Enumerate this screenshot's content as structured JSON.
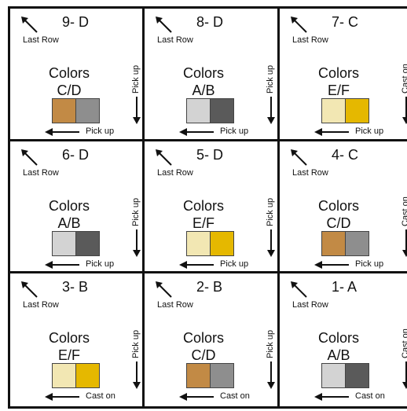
{
  "cells": [
    {
      "title": "9- D",
      "last_row": "Last Row",
      "colors_label": "Colors",
      "pair": "C/D",
      "swatches": [
        "#c28a45",
        "#8e8e8e"
      ],
      "side_label": "Pick up",
      "bottom_label": "Pick up"
    },
    {
      "title": "8- D",
      "last_row": "Last Row",
      "colors_label": "Colors",
      "pair": "A/B",
      "swatches": [
        "#d3d3d3",
        "#5a5a5a"
      ],
      "side_label": "Pick up",
      "bottom_label": "Pick up"
    },
    {
      "title": "7- C",
      "last_row": "Last Row",
      "colors_label": "Colors",
      "pair": "E/F",
      "swatches": [
        "#f2e7b3",
        "#e5b800"
      ],
      "side_label": "Cast on",
      "bottom_label": "Pick up"
    },
    {
      "title": "6- D",
      "last_row": "Last Row",
      "colors_label": "Colors",
      "pair": "A/B",
      "swatches": [
        "#d3d3d3",
        "#5a5a5a"
      ],
      "side_label": "Pick up",
      "bottom_label": "Pick up"
    },
    {
      "title": "5- D",
      "last_row": "Last Row",
      "colors_label": "Colors",
      "pair": "E/F",
      "swatches": [
        "#f2e7b3",
        "#e5b800"
      ],
      "side_label": "Pick up",
      "bottom_label": "Pick up"
    },
    {
      "title": "4- C",
      "last_row": "Last Row",
      "colors_label": "Colors",
      "pair": "C/D",
      "swatches": [
        "#c28a45",
        "#8e8e8e"
      ],
      "side_label": "Cast on",
      "bottom_label": "Pick up"
    },
    {
      "title": "3- B",
      "last_row": "Last Row",
      "colors_label": "Colors",
      "pair": "E/F",
      "swatches": [
        "#f2e7b3",
        "#e5b800"
      ],
      "side_label": "Pick up",
      "bottom_label": "Cast on"
    },
    {
      "title": "2- B",
      "last_row": "Last Row",
      "colors_label": "Colors",
      "pair": "C/D",
      "swatches": [
        "#c28a45",
        "#8e8e8e"
      ],
      "side_label": "Pick up",
      "bottom_label": "Cast on"
    },
    {
      "title": "1- A",
      "last_row": "Last Row",
      "colors_label": "Colors",
      "pair": "A/B",
      "swatches": [
        "#d3d3d3",
        "#5a5a5a"
      ],
      "side_label": "Cast on",
      "bottom_label": "Cast on"
    }
  ]
}
